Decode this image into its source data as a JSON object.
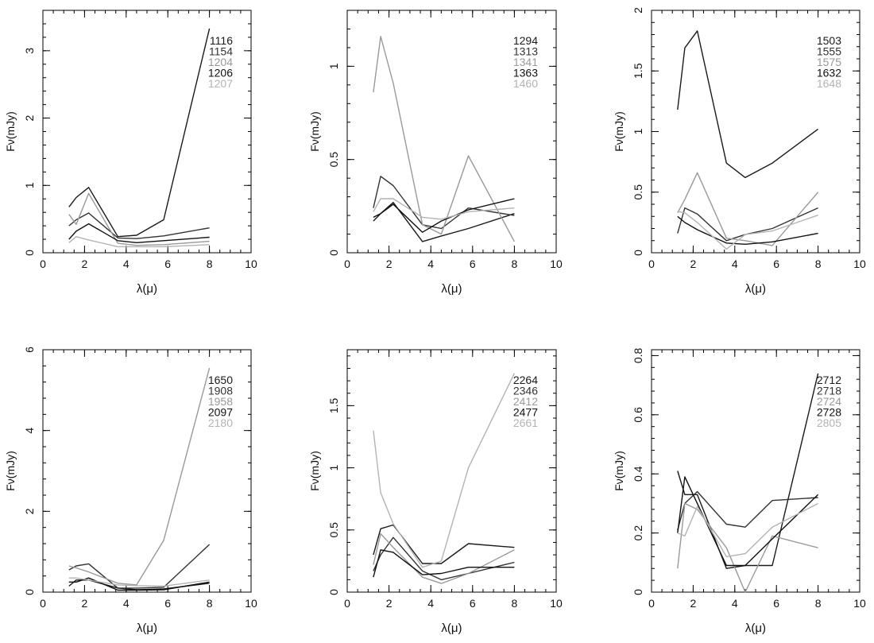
{
  "chart_data": [
    {
      "type": "line",
      "xlabel": "λ(μ)",
      "ylabel": "Fν(mJy)",
      "xlim": [
        0,
        10
      ],
      "ylim": [
        0,
        3.6
      ],
      "xticks": [
        0,
        2,
        4,
        6,
        8,
        10
      ],
      "xticklabels": [
        "0",
        "2",
        "4",
        "6",
        "8",
        "10"
      ],
      "yticks": [
        0,
        1,
        2,
        3
      ],
      "yticklabels": [
        "0",
        "1",
        "2",
        "3"
      ],
      "legend": "top-right",
      "grid": false,
      "series": [
        {
          "name": "1116",
          "color": "#1a1a1a",
          "x": [
            1.25,
            1.6,
            2.2,
            3.6,
            4.5,
            5.8,
            8.0
          ],
          "y": [
            0.68,
            0.82,
            0.97,
            0.24,
            0.26,
            0.49,
            3.33
          ]
        },
        {
          "name": "1154",
          "color": "#333333",
          "x": [
            1.25,
            1.6,
            2.2,
            3.6,
            4.5,
            5.8,
            8.0
          ],
          "y": [
            0.4,
            0.49,
            0.59,
            0.22,
            0.21,
            0.25,
            0.37
          ]
        },
        {
          "name": "1204",
          "color": "#999999",
          "x": [
            1.25,
            1.6,
            2.2,
            3.6,
            4.5,
            5.8,
            8.0
          ],
          "y": [
            0.57,
            0.42,
            0.88,
            0.14,
            0.11,
            0.12,
            0.17
          ]
        },
        {
          "name": "1206",
          "color": "#111111",
          "x": [
            1.25,
            1.6,
            2.2,
            3.6,
            4.5,
            5.8,
            8.0
          ],
          "y": [
            0.2,
            0.32,
            0.43,
            0.18,
            0.15,
            0.18,
            0.23
          ]
        },
        {
          "name": "1207",
          "color": "#b3b3b3",
          "x": [
            1.25,
            1.6,
            2.2,
            3.6,
            4.5,
            5.8,
            8.0
          ],
          "y": [
            0.15,
            0.24,
            0.19,
            0.09,
            0.09,
            0.09,
            0.12
          ]
        }
      ]
    },
    {
      "type": "line",
      "xlabel": "λ(μ)",
      "ylabel": "Fν(mJy)",
      "xlim": [
        0,
        10
      ],
      "ylim": [
        0,
        1.3
      ],
      "xticks": [
        0,
        2,
        4,
        6,
        8,
        10
      ],
      "xticklabels": [
        "0",
        "2",
        "4",
        "6",
        "8",
        "10"
      ],
      "yticks": [
        0,
        0.5,
        1
      ],
      "yticklabels": [
        "0",
        "0.5",
        "1"
      ],
      "legend": "top-right",
      "grid": false,
      "series": [
        {
          "name": "1294",
          "color": "#1a1a1a",
          "x": [
            1.25,
            1.6,
            2.2,
            3.6,
            4.5,
            5.8,
            8.0
          ],
          "y": [
            0.17,
            0.21,
            0.27,
            0.06,
            0.09,
            0.13,
            0.21
          ]
        },
        {
          "name": "1313",
          "color": "#333333",
          "x": [
            1.25,
            1.6,
            2.2,
            3.6,
            4.5,
            5.8,
            8.0
          ],
          "y": [
            0.24,
            0.41,
            0.36,
            0.15,
            0.13,
            0.24,
            0.2
          ]
        },
        {
          "name": "1341",
          "color": "#999999",
          "x": [
            1.25,
            1.6,
            2.2,
            3.6,
            4.5,
            5.8,
            8.0
          ],
          "y": [
            0.86,
            1.16,
            0.91,
            0.15,
            0.1,
            0.52,
            0.06
          ]
        },
        {
          "name": "1363",
          "color": "#111111",
          "x": [
            1.25,
            1.6,
            2.2,
            3.6,
            4.5,
            5.8,
            8.0
          ],
          "y": [
            0.19,
            0.21,
            0.26,
            0.11,
            0.17,
            0.23,
            0.29
          ]
        },
        {
          "name": "1460",
          "color": "#b3b3b3",
          "x": [
            1.25,
            1.6,
            2.2,
            3.6,
            4.5,
            5.8,
            8.0
          ],
          "y": [
            0.22,
            0.29,
            0.29,
            0.19,
            0.18,
            0.22,
            0.24
          ]
        }
      ]
    },
    {
      "type": "line",
      "xlabel": "λ(μ)",
      "ylabel": "Fν(mJy)",
      "xlim": [
        0,
        10
      ],
      "ylim": [
        0,
        2.0
      ],
      "xticks": [
        0,
        2,
        4,
        6,
        8,
        10
      ],
      "xticklabels": [
        "0",
        "2",
        "4",
        "6",
        "8",
        "10"
      ],
      "yticks": [
        0,
        0.5,
        1,
        1.5,
        2
      ],
      "yticklabels": [
        "0",
        "0.5",
        "1",
        "1.5",
        "2"
      ],
      "legend": "top-right",
      "grid": false,
      "series": [
        {
          "name": "1503",
          "color": "#1a1a1a",
          "x": [
            1.25,
            1.6,
            2.2,
            3.6,
            4.5,
            5.8,
            8.0
          ],
          "y": [
            1.18,
            1.69,
            1.83,
            0.74,
            0.62,
            0.74,
            1.02
          ]
        },
        {
          "name": "1555",
          "color": "#333333",
          "x": [
            1.25,
            1.6,
            2.2,
            3.6,
            4.5,
            5.8,
            8.0
          ],
          "y": [
            0.16,
            0.37,
            0.32,
            0.1,
            0.15,
            0.2,
            0.37
          ]
        },
        {
          "name": "1575",
          "color": "#999999",
          "x": [
            1.25,
            1.6,
            2.2,
            3.6,
            4.5,
            5.8,
            8.0
          ],
          "y": [
            0.33,
            0.44,
            0.66,
            0.12,
            0.1,
            0.06,
            0.5
          ]
        },
        {
          "name": "1632",
          "color": "#111111",
          "x": [
            1.25,
            1.6,
            2.2,
            3.6,
            4.5,
            5.8,
            8.0
          ],
          "y": [
            0.3,
            0.25,
            0.19,
            0.08,
            0.07,
            0.09,
            0.16
          ]
        },
        {
          "name": "1648",
          "color": "#b3b3b3",
          "x": [
            1.25,
            1.6,
            2.2,
            3.6,
            4.5,
            5.8,
            8.0
          ],
          "y": [
            0.34,
            0.33,
            0.25,
            0.03,
            0.15,
            0.18,
            0.31
          ]
        }
      ]
    },
    {
      "type": "line",
      "xlabel": "λ(μ)",
      "ylabel": "Fν(mJy)",
      "xlim": [
        0,
        10
      ],
      "ylim": [
        0,
        6.0
      ],
      "xticks": [
        0,
        2,
        4,
        6,
        8,
        10
      ],
      "xticklabels": [
        "0",
        "2",
        "4",
        "6",
        "8",
        "10"
      ],
      "yticks": [
        0,
        2,
        4,
        6
      ],
      "yticklabels": [
        "0",
        "2",
        "4",
        "6"
      ],
      "legend": "top-right",
      "grid": false,
      "series": [
        {
          "name": "1650",
          "color": "#1a1a1a",
          "x": [
            1.25,
            1.6,
            2.2,
            3.6,
            4.5,
            5.8,
            8.0
          ],
          "y": [
            0.15,
            0.3,
            0.3,
            0.1,
            0.06,
            0.08,
            0.22
          ]
        },
        {
          "name": "1908",
          "color": "#333333",
          "x": [
            1.25,
            1.6,
            2.2,
            3.6,
            4.5,
            5.8,
            8.0
          ],
          "y": [
            0.55,
            0.65,
            0.7,
            0.1,
            0.1,
            0.12,
            1.18
          ]
        },
        {
          "name": "1958",
          "color": "#999999",
          "x": [
            1.25,
            1.6,
            2.2,
            3.6,
            4.5,
            5.8,
            8.0
          ],
          "y": [
            0.65,
            0.6,
            0.5,
            0.22,
            0.18,
            1.28,
            5.55
          ]
        },
        {
          "name": "2097",
          "color": "#111111",
          "x": [
            1.25,
            1.6,
            2.2,
            3.6,
            4.5,
            5.8,
            8.0
          ],
          "y": [
            0.25,
            0.25,
            0.35,
            0.05,
            0.05,
            0.06,
            0.25
          ]
        },
        {
          "name": "2180",
          "color": "#b3b3b3",
          "x": [
            1.25,
            1.6,
            2.2,
            3.6,
            4.5,
            5.8,
            8.0
          ],
          "y": [
            0.35,
            0.35,
            0.3,
            0.18,
            0.16,
            0.15,
            0.3
          ]
        }
      ]
    },
    {
      "type": "line",
      "xlabel": "λ(μ)",
      "ylabel": "Fν(mJy)",
      "xlim": [
        0,
        10
      ],
      "ylim": [
        0,
        1.95
      ],
      "xticks": [
        0,
        2,
        4,
        6,
        8,
        10
      ],
      "xticklabels": [
        "0",
        "2",
        "4",
        "6",
        "8",
        "10"
      ],
      "yticks": [
        0,
        0.5,
        1,
        1.5
      ],
      "yticklabels": [
        "0",
        "0.5",
        "1",
        "1.5"
      ],
      "legend": "top-right",
      "grid": false,
      "series": [
        {
          "name": "2264",
          "color": "#1a1a1a",
          "x": [
            1.25,
            1.6,
            2.2,
            3.6,
            4.5,
            5.8,
            8.0
          ],
          "y": [
            0.3,
            0.51,
            0.54,
            0.23,
            0.23,
            0.39,
            0.36
          ]
        },
        {
          "name": "2346",
          "color": "#333333",
          "x": [
            1.25,
            1.6,
            2.2,
            3.6,
            4.5,
            5.8,
            8.0
          ],
          "y": [
            0.17,
            0.3,
            0.44,
            0.17,
            0.1,
            0.15,
            0.24
          ]
        },
        {
          "name": "2412",
          "color": "#999999",
          "x": [
            1.25,
            1.6,
            2.2,
            3.6,
            4.5,
            5.8,
            8.0
          ],
          "y": [
            0.22,
            0.47,
            0.36,
            0.12,
            0.07,
            0.15,
            0.34
          ]
        },
        {
          "name": "2477",
          "color": "#111111",
          "x": [
            1.25,
            1.6,
            2.2,
            3.6,
            4.5,
            5.8,
            8.0
          ],
          "y": [
            0.12,
            0.34,
            0.32,
            0.14,
            0.15,
            0.2,
            0.2
          ]
        },
        {
          "name": "2661",
          "color": "#b3b3b3",
          "x": [
            1.25,
            1.6,
            2.2,
            3.6,
            4.5,
            5.8,
            8.0
          ],
          "y": [
            1.3,
            0.8,
            0.55,
            0.2,
            0.25,
            1.0,
            1.76
          ]
        }
      ]
    },
    {
      "type": "line",
      "xlabel": "λ(μ)",
      "ylabel": "Fν(mJy)",
      "xlim": [
        0,
        10
      ],
      "ylim": [
        0,
        0.82
      ],
      "xticks": [
        0,
        2,
        4,
        6,
        8,
        10
      ],
      "xticklabels": [
        "0",
        "2",
        "4",
        "6",
        "8",
        "10"
      ],
      "yticks": [
        0,
        0.2,
        0.4,
        0.6,
        0.8
      ],
      "yticklabels": [
        "0",
        "0.2",
        "0.4",
        "0.6",
        "0.8"
      ],
      "legend": "top-right",
      "grid": false,
      "series": [
        {
          "name": "2712",
          "color": "#1a1a1a",
          "x": [
            1.25,
            1.6,
            2.2,
            3.6,
            4.5,
            5.8,
            8.0
          ],
          "y": [
            0.41,
            0.33,
            0.33,
            0.08,
            0.09,
            0.09,
            0.74
          ]
        },
        {
          "name": "2718",
          "color": "#333333",
          "x": [
            1.25,
            1.6,
            2.2,
            3.6,
            4.5,
            5.8,
            8.0
          ],
          "y": [
            0.21,
            0.3,
            0.34,
            0.23,
            0.22,
            0.31,
            0.32
          ]
        },
        {
          "name": "2724",
          "color": "#999999",
          "x": [
            1.25,
            1.6,
            2.2,
            3.6,
            4.5,
            5.8,
            8.0
          ],
          "y": [
            0.08,
            0.3,
            0.28,
            0.15,
            0.0,
            0.19,
            0.15
          ]
        },
        {
          "name": "2728",
          "color": "#111111",
          "x": [
            1.25,
            1.6,
            2.2,
            3.6,
            4.5,
            5.8,
            8.0
          ],
          "y": [
            0.2,
            0.39,
            0.3,
            0.09,
            0.09,
            0.18,
            0.33
          ]
        },
        {
          "name": "2805",
          "color": "#b3b3b3",
          "x": [
            1.25,
            1.6,
            2.2,
            3.6,
            4.5,
            5.8,
            8.0
          ],
          "y": [
            0.2,
            0.19,
            0.29,
            0.12,
            0.13,
            0.22,
            0.3
          ]
        }
      ]
    }
  ]
}
